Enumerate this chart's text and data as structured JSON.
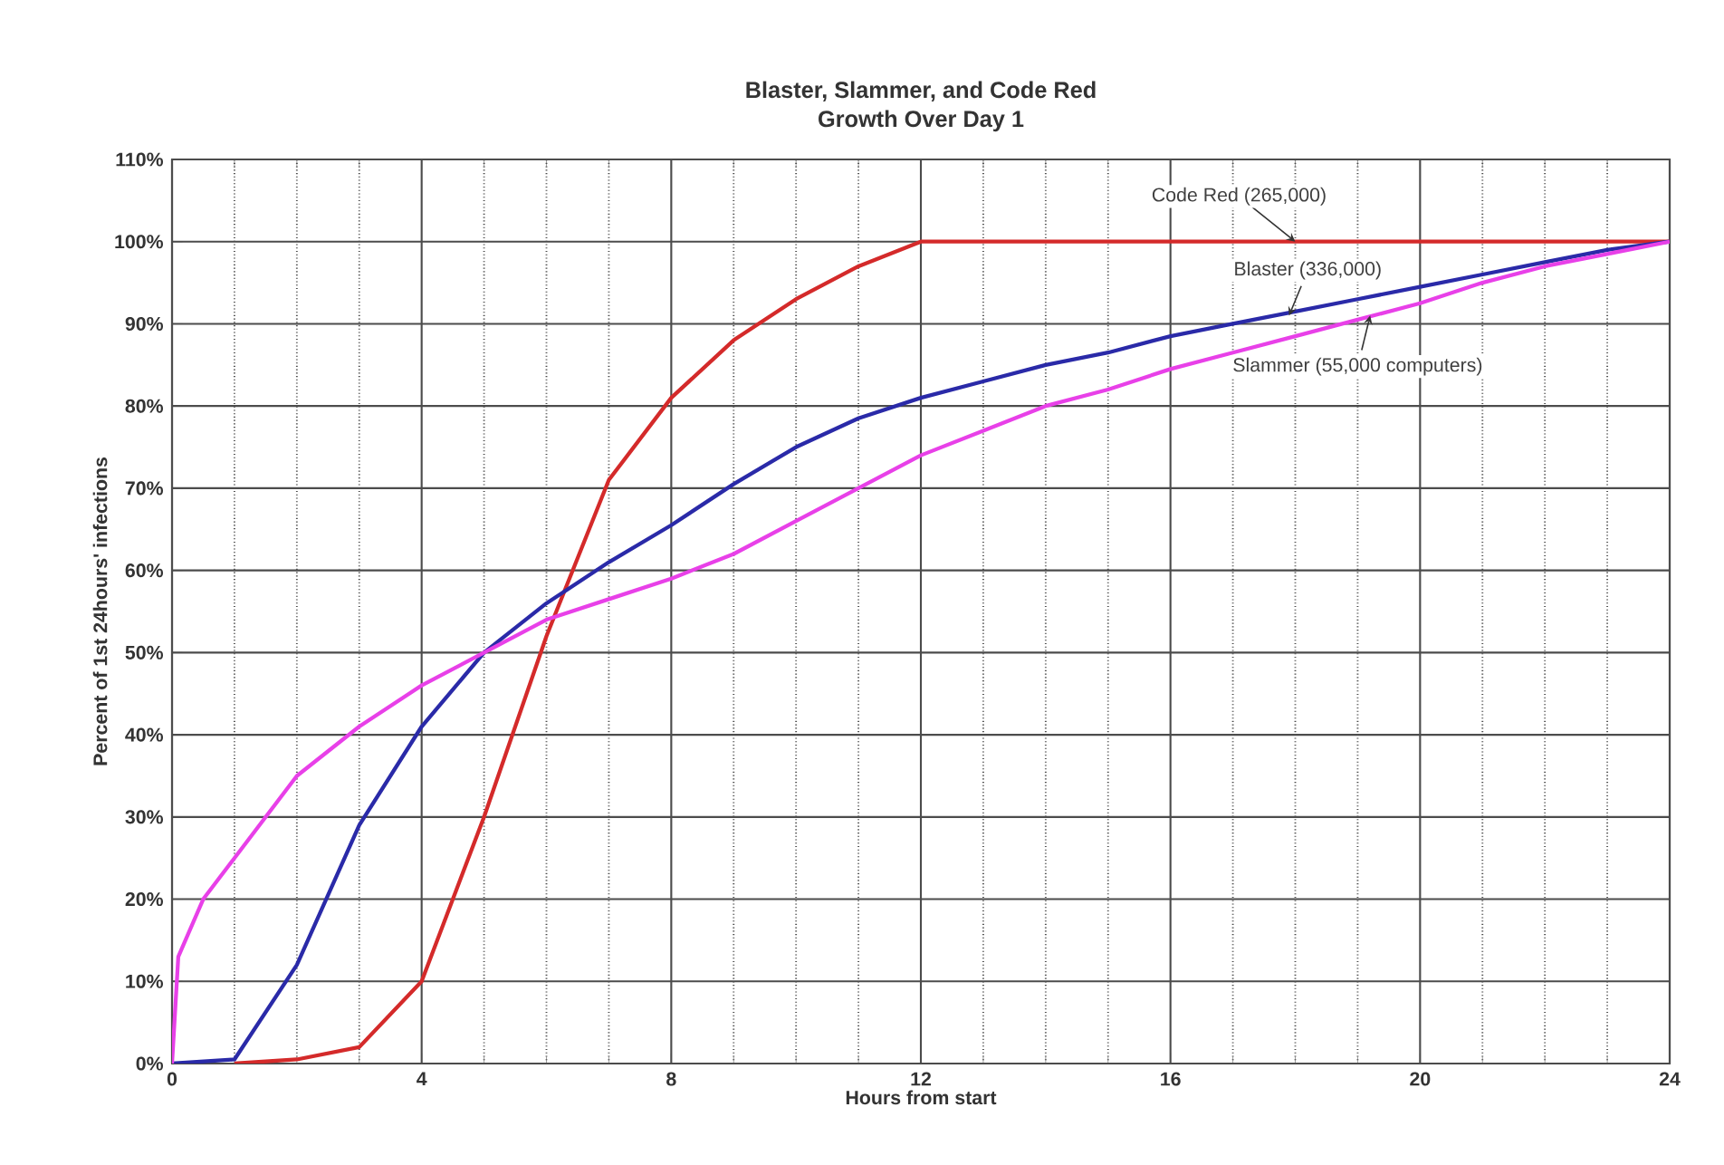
{
  "chart_data": {
    "type": "line",
    "title": "Blaster, Slammer, and Code Red",
    "subtitle": "Growth Over Day 1",
    "xlabel": "Hours from start",
    "ylabel": "Percent of 1st 24hours' infections",
    "xlim": [
      0,
      24
    ],
    "xticks": [
      0,
      4,
      8,
      12,
      16,
      20,
      24
    ],
    "ylim": [
      0,
      110
    ],
    "yticks": [
      {
        "value": 0,
        "label": "0%"
      },
      {
        "value": 10,
        "label": "10%"
      },
      {
        "value": 20,
        "label": "20%"
      },
      {
        "value": 30,
        "label": "30%"
      },
      {
        "value": 40,
        "label": "40%"
      },
      {
        "value": 50,
        "label": "50%"
      },
      {
        "value": 60,
        "label": "60%"
      },
      {
        "value": 70,
        "label": "70%"
      },
      {
        "value": 80,
        "label": "80%"
      },
      {
        "value": 90,
        "label": "90%"
      },
      {
        "value": 100,
        "label": "100%"
      },
      {
        "value": 110,
        "label": "110%"
      }
    ],
    "grid": true,
    "marker": "none",
    "line_style": "solid",
    "series": [
      {
        "color": "#d42a2a",
        "x": [
          1,
          2,
          3,
          4,
          5,
          6,
          7,
          8,
          9,
          10,
          11,
          12,
          13,
          14,
          15,
          16,
          17,
          18,
          19,
          20,
          21,
          22,
          23,
          24
        ],
        "values": [
          0,
          0.5,
          2,
          10,
          30,
          52,
          71,
          81,
          88,
          93,
          97,
          100,
          100,
          100,
          100,
          100,
          100,
          100,
          100,
          100,
          100,
          100,
          100,
          100
        ]
      },
      {
        "color": "#2a2aa8",
        "x": [
          0,
          1,
          2,
          3,
          4,
          5,
          6,
          7,
          8,
          9,
          10,
          11,
          12,
          13,
          14,
          15,
          16,
          17,
          18,
          19,
          20,
          21,
          22,
          23,
          24
        ],
        "values": [
          0,
          0.5,
          12,
          29,
          41,
          50,
          56,
          61,
          65.5,
          70.5,
          75,
          78.5,
          81,
          83,
          85,
          86.5,
          88.5,
          90,
          91.5,
          93,
          94.5,
          96,
          97.5,
          99,
          100
        ]
      },
      {
        "color": "#e840e8",
        "x": [
          0,
          0.1,
          0.5,
          1,
          2,
          3,
          4,
          5,
          6,
          7,
          8,
          9,
          10,
          11,
          12,
          13,
          14,
          15,
          16,
          17,
          18,
          19,
          20,
          21,
          22,
          23,
          24
        ],
        "values": [
          0,
          13,
          20,
          25,
          35,
          41,
          46,
          50,
          54,
          56.5,
          59,
          62,
          66,
          70,
          74,
          77,
          80,
          82,
          84.5,
          86.5,
          88.5,
          90.5,
          92.5,
          95,
          97,
          98.5,
          100
        ]
      }
    ],
    "annotations": [
      {
        "text": "Code Red (265,000)",
        "x": 18,
        "y": 100
      },
      {
        "text": "Blaster (336,000)",
        "x": 17.9,
        "y": 91
      },
      {
        "text": "Slammer (55,000 computers)",
        "x": 19.2,
        "y": 91
      }
    ]
  }
}
